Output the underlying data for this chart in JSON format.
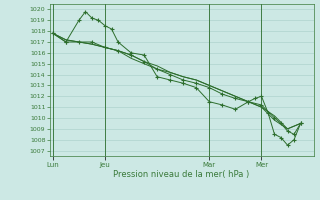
{
  "title": "Pression niveau de la mer( hPa )",
  "bg_color": "#cce8e4",
  "grid_color": "#a8cec8",
  "line_color": "#2d6e2d",
  "text_color": "#3a7a3a",
  "ylim": [
    1006.5,
    1020.5
  ],
  "yticks": [
    1007,
    1008,
    1009,
    1010,
    1011,
    1012,
    1013,
    1014,
    1015,
    1016,
    1017,
    1018,
    1019,
    1020
  ],
  "xtick_labels": [
    "Lun",
    "Jeu",
    "Mar",
    "Mer"
  ],
  "xtick_positions": [
    0,
    8,
    24,
    32
  ],
  "xlim": [
    -0.5,
    40
  ],
  "vlines": [
    0,
    8,
    24,
    32
  ],
  "series_with_markers": [
    {
      "x": [
        0,
        2,
        4,
        5,
        6,
        7,
        8,
        9,
        10,
        12,
        14,
        16,
        18,
        20,
        22,
        24,
        26,
        28,
        30,
        31,
        32,
        33,
        34,
        35,
        36,
        37,
        38
      ],
      "y": [
        1017.8,
        1017.0,
        1019.0,
        1019.8,
        1019.2,
        1019.0,
        1018.5,
        1018.2,
        1017.0,
        1016.0,
        1015.8,
        1013.8,
        1013.5,
        1013.2,
        1012.8,
        1011.5,
        1011.2,
        1010.8,
        1011.5,
        1011.8,
        1012.0,
        1010.5,
        1008.5,
        1008.2,
        1007.5,
        1008.0,
        1009.5
      ]
    },
    {
      "x": [
        0,
        2,
        4,
        6,
        8,
        10,
        12,
        14,
        16,
        18,
        20,
        22,
        24,
        26,
        28,
        30,
        32,
        34,
        35,
        36,
        37,
        38
      ],
      "y": [
        1017.8,
        1017.0,
        1017.0,
        1017.0,
        1016.5,
        1016.2,
        1015.8,
        1015.2,
        1014.5,
        1014.0,
        1013.5,
        1013.2,
        1012.8,
        1012.2,
        1011.8,
        1011.5,
        1011.2,
        1010.0,
        1009.5,
        1008.8,
        1008.5,
        1009.5
      ]
    }
  ],
  "series_no_markers": [
    {
      "x": [
        0,
        2,
        4,
        6,
        8,
        10,
        12,
        14,
        16,
        18,
        20,
        22,
        24,
        26,
        28,
        30,
        32,
        34,
        36,
        38
      ],
      "y": [
        1017.8,
        1017.2,
        1017.0,
        1016.8,
        1016.5,
        1016.2,
        1015.5,
        1015.0,
        1014.5,
        1014.2,
        1013.8,
        1013.5,
        1013.0,
        1012.5,
        1012.0,
        1011.5,
        1011.0,
        1010.2,
        1009.0,
        1009.5
      ]
    },
    {
      "x": [
        0,
        2,
        4,
        6,
        8,
        10,
        12,
        14,
        16,
        18,
        20,
        22,
        24,
        26,
        28,
        30,
        32,
        34,
        36,
        38
      ],
      "y": [
        1017.8,
        1017.2,
        1017.0,
        1016.8,
        1016.5,
        1016.2,
        1015.8,
        1015.2,
        1014.8,
        1014.2,
        1013.8,
        1013.5,
        1013.0,
        1012.5,
        1012.0,
        1011.5,
        1011.0,
        1009.8,
        1009.0,
        1009.5
      ]
    }
  ]
}
